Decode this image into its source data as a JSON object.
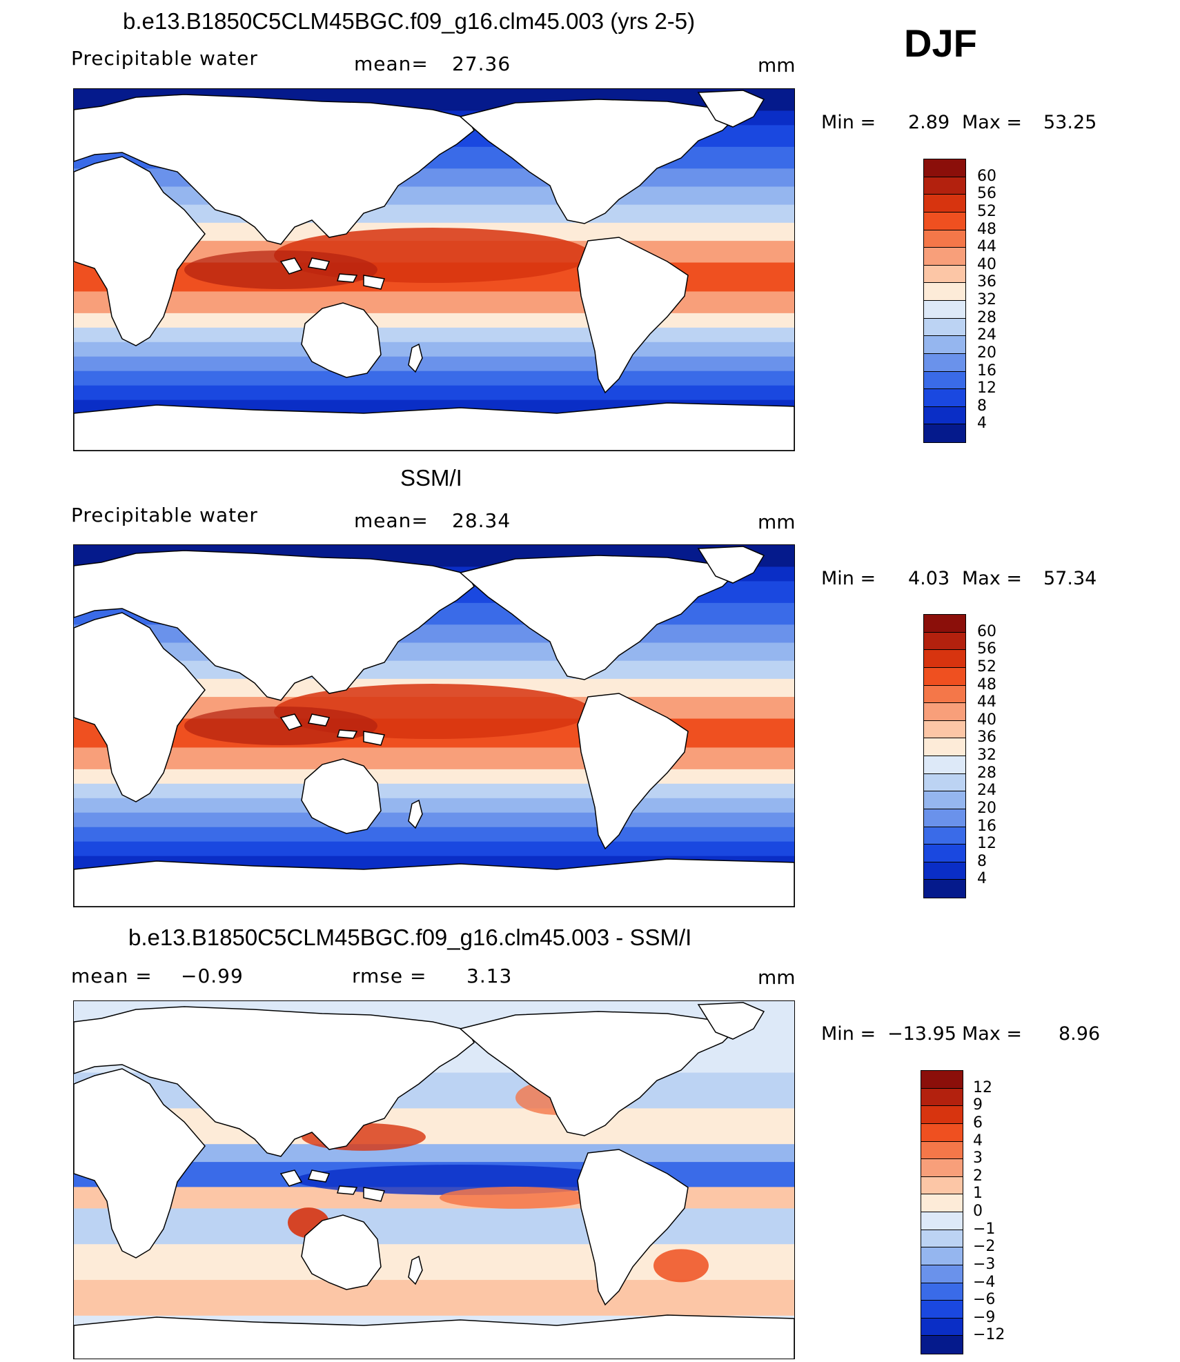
{
  "figure": {
    "season": "DJF",
    "units": "mm"
  },
  "chart_data": [
    {
      "type": "heatmap",
      "title": "b.e13.B1850C5CLM45BGC.f09_g16.clm45.003 (yrs 2-5)",
      "variable": "Precipitable water",
      "mean_label": "mean=",
      "mean": "27.36",
      "units": "mm",
      "min_label": "Min =",
      "min": "2.89",
      "max_label": "Max =",
      "max": "53.25",
      "levels": [
        "60",
        "56",
        "52",
        "48",
        "44",
        "40",
        "36",
        "32",
        "28",
        "24",
        "20",
        "16",
        "12",
        "8",
        "4"
      ],
      "colors": [
        "#8b0f0a",
        "#b3210e",
        "#d7340f",
        "#ef5020",
        "#f47749",
        "#f89f7a",
        "#fcc6a6",
        "#fdebd8",
        "#dde9f8",
        "#bcd3f3",
        "#95b6ef",
        "#6a92eb",
        "#3a6be8",
        "#1a48e0",
        "#0a2ec6",
        "#051a8c"
      ]
    },
    {
      "type": "heatmap",
      "title": "SSM/I",
      "variable": "Precipitable water",
      "mean_label": "mean=",
      "mean": "28.34",
      "units": "mm",
      "min_label": "Min =",
      "min": "4.03",
      "max_label": "Max =",
      "max": "57.34",
      "levels": [
        "60",
        "56",
        "52",
        "48",
        "44",
        "40",
        "36",
        "32",
        "28",
        "24",
        "20",
        "16",
        "12",
        "8",
        "4"
      ],
      "colors": [
        "#8b0f0a",
        "#b3210e",
        "#d7340f",
        "#ef5020",
        "#f47749",
        "#f89f7a",
        "#fcc6a6",
        "#fdebd8",
        "#dde9f8",
        "#bcd3f3",
        "#95b6ef",
        "#6a92eb",
        "#3a6be8",
        "#1a48e0",
        "#0a2ec6",
        "#051a8c"
      ]
    },
    {
      "type": "heatmap",
      "title": "b.e13.B1850C5CLM45BGC.f09_g16.clm45.003 - SSM/I",
      "mean_label": "mean =",
      "mean": "−0.99",
      "rmse_label": "rmse =",
      "rmse": "3.13",
      "units": "mm",
      "min_label": "Min =",
      "min": "−13.95",
      "max_label": "Max =",
      "max": "8.96",
      "levels": [
        "12",
        "9",
        "6",
        "4",
        "3",
        "2",
        "1",
        "0",
        "−1",
        "−2",
        "−3",
        "−4",
        "−6",
        "−9",
        "−12"
      ],
      "colors": [
        "#8b0f0a",
        "#b3210e",
        "#d7340f",
        "#ef5020",
        "#f47749",
        "#f89f7a",
        "#fcc6a6",
        "#fdebd8",
        "#dde9f8",
        "#bcd3f3",
        "#95b6ef",
        "#6a92eb",
        "#3a6be8",
        "#1a48e0",
        "#0a2ec6",
        "#051a8c"
      ]
    }
  ]
}
